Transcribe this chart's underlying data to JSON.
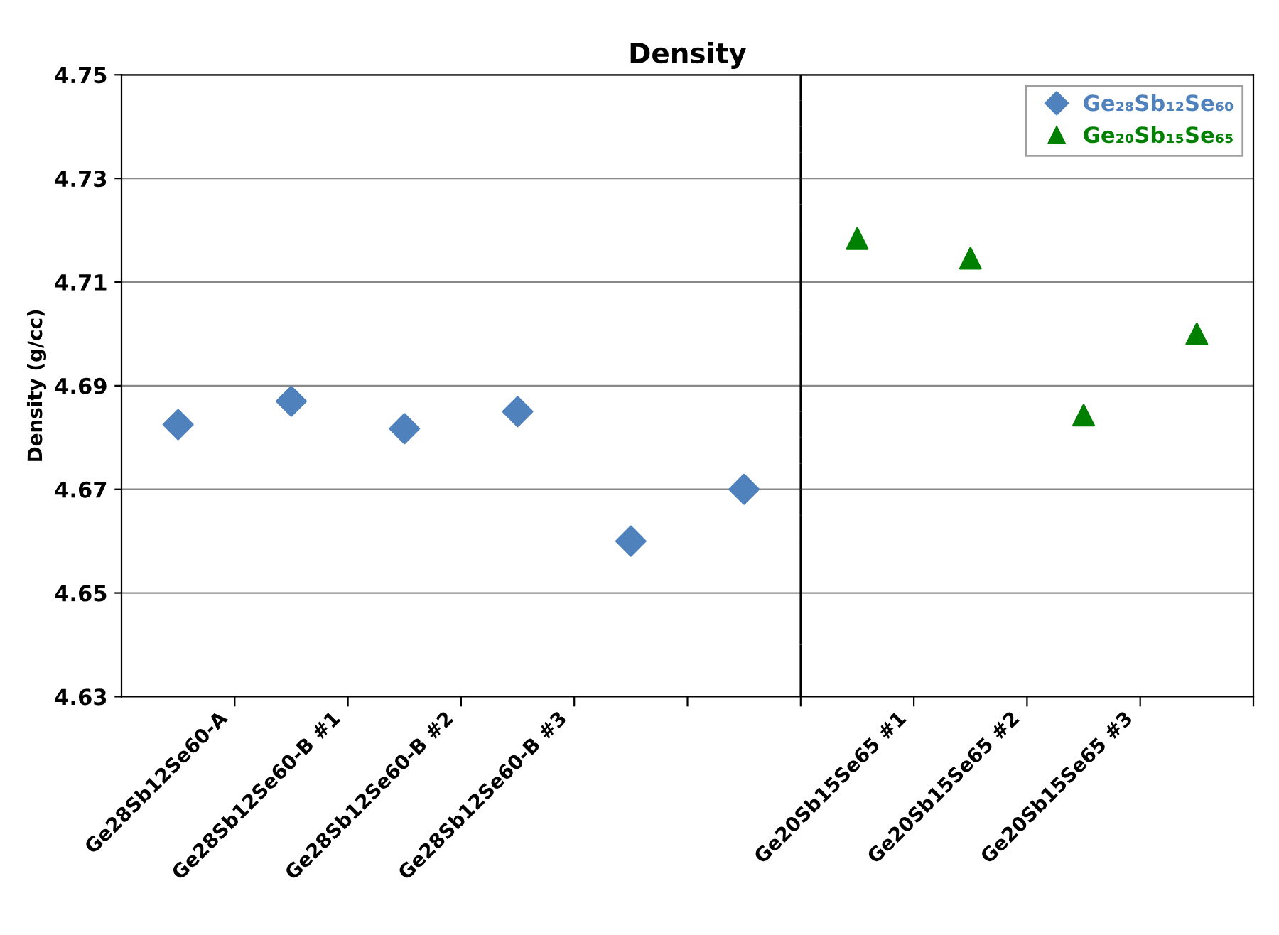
{
  "chart_data": {
    "type": "scatter",
    "title": "Density",
    "ylabel": "Density (g/cc)",
    "categories": [
      "Ge28Sb12Se60-A",
      "Ge28Sb12Se60-B #1",
      "Ge28Sb12Se60-B #2",
      "Ge28Sb12Se60-B #3",
      null,
      null,
      "Ge20Sb15Se65 #1",
      "Ge20Sb15Se65 #2",
      "Ge20Sb15Se65 #3",
      null
    ],
    "series": [
      {
        "name": "Ge₂₈Sb₁₂Se₆₀",
        "color": "#4f81bd",
        "marker": "diamond",
        "values": [
          4.6825,
          4.687,
          4.6817,
          4.685,
          4.66,
          4.67,
          null,
          null,
          null,
          null
        ]
      },
      {
        "name": "Ge₂₀Sb₁₅Se₆₅",
        "color": "#008000",
        "marker": "triangle",
        "values": [
          null,
          null,
          null,
          null,
          null,
          null,
          4.7184,
          4.7146,
          4.6843,
          4.7
        ]
      }
    ],
    "ylim": [
      4.63,
      4.75
    ],
    "yticks": [
      4.63,
      4.65,
      4.67,
      4.69,
      4.71,
      4.73,
      4.75
    ],
    "grid": "y",
    "legend": "top right"
  }
}
